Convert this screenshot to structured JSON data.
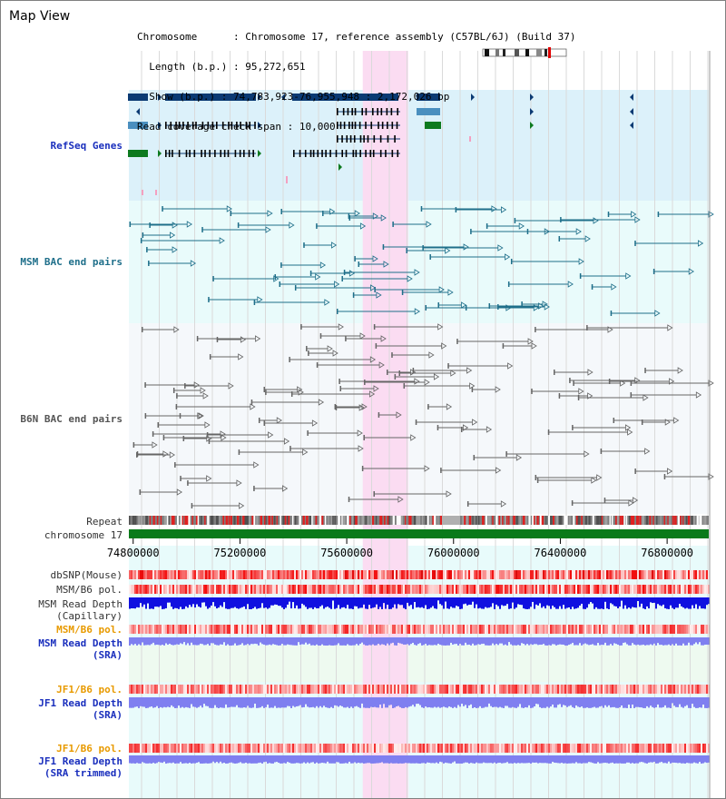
{
  "title": "Map View",
  "info": {
    "chromosome_key": "Chromosome",
    "chromosome_val": "Chromosome 17, reference assembly (C57BL/6J) (Build 37)",
    "length_key": "Length (b.p.)",
    "length_val": "95,272,651",
    "show_key": "Show (b.p.)",
    "show_val": "74,783,923-76,955,948 : 2,172,026 bp",
    "coverage_key": "Read coverage check span",
    "coverage_val": "10,000"
  },
  "tracks": {
    "refseq": "RefSeq Genes",
    "msm_bac": "MSM BAC end pairs",
    "b6n_bac": "B6N BAC end pairs",
    "repeat": "Repeat",
    "chromosome": "chromosome 17",
    "dbsnp": "dbSNP(Mouse)",
    "msm_b6_pol1": "MSM/B6 pol.",
    "msm_depth_cap_1": "MSM Read Depth",
    "msm_depth_cap_2": "(Capillary)",
    "msm_b6_pol2": "MSM/B6 pol.",
    "msm_depth_sra_1": "MSM Read Depth",
    "msm_depth_sra_2": "(SRA)",
    "jf1_b6_pol1": "JF1/B6 pol.",
    "jf1_depth_sra_1": "JF1 Read Depth",
    "jf1_depth_sra_2": "(SRA)",
    "jf1_b6_pol2": "JF1/B6 pol.",
    "jf1_depth_trim_1": "JF1 Read Depth",
    "jf1_depth_trim_2": "(SRA trimmed)"
  },
  "axis": {
    "ticks": [
      "74800000",
      "75200000",
      "75600000",
      "76000000",
      "76400000",
      "76800000"
    ],
    "tick_values": [
      74800000,
      75200000,
      75600000,
      76000000,
      76400000,
      76800000
    ],
    "start": 74783923,
    "end": 76955948
  },
  "highlight": {
    "start": 75660000,
    "end": 75830000
  },
  "colors": {
    "refseq_bg": "#dcf1fa",
    "msm_bg": "#e9fbfb",
    "b6n_bg": "#f5f8fb",
    "highlight": "#fbdcf2",
    "gene_dark": "#0b3a73",
    "gene_mid": "#4a8fbf",
    "gene_green": "#0d7a1f",
    "chromosome": "#0a7a1a",
    "msm_feature": "#1f6f8a",
    "b6n_feature": "#666666",
    "depth_capillary": "#1010e0",
    "depth_sra": "#7f7ff0"
  }
}
